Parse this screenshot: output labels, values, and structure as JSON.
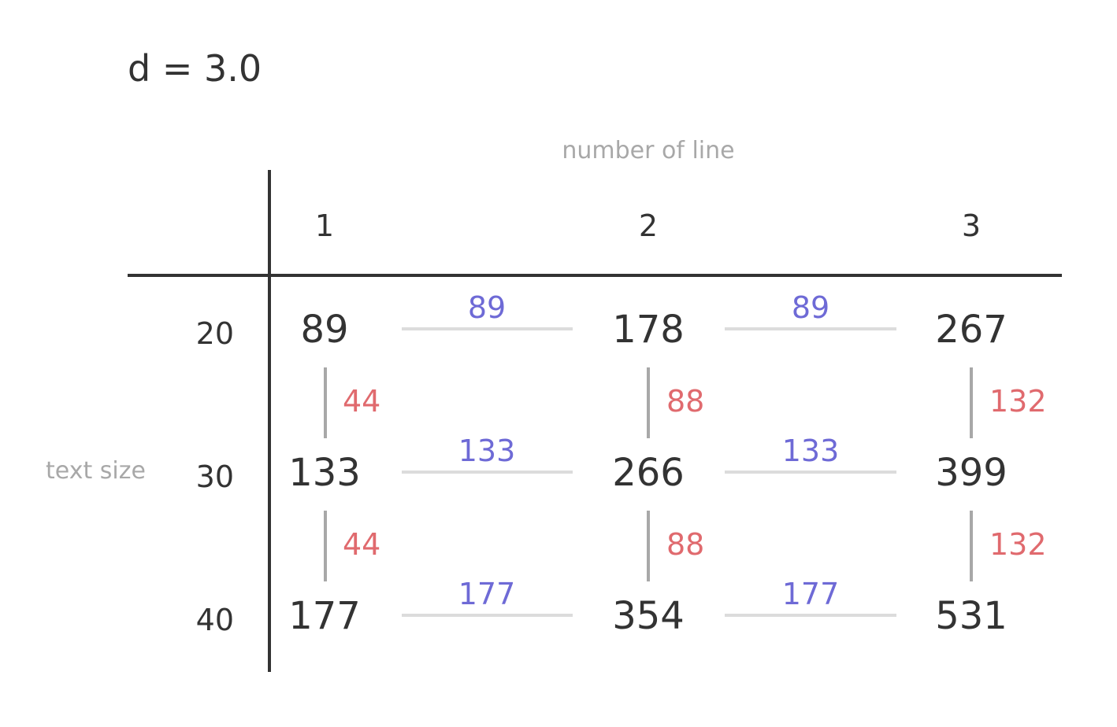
{
  "title": "d = 3.0",
  "axes": {
    "x_label": "number of line",
    "y_label": "text size"
  },
  "columns": [
    "1",
    "2",
    "3"
  ],
  "rows": [
    "20",
    "30",
    "40"
  ],
  "cells": [
    [
      "89",
      "178",
      "267"
    ],
    [
      "133",
      "266",
      "399"
    ],
    [
      "177",
      "354",
      "531"
    ]
  ],
  "horizontal_diffs": [
    [
      "89",
      "89"
    ],
    [
      "133",
      "133"
    ],
    [
      "177",
      "177"
    ]
  ],
  "vertical_diffs": [
    [
      "44",
      "88",
      "132"
    ],
    [
      "44",
      "88",
      "132"
    ]
  ],
  "colors": {
    "text": "#333333",
    "muted": "#a8a8a8",
    "horizontal_diff": "#6e6ad6",
    "vertical_diff": "#e06a6e",
    "connector_horizontal": "#dcdcdc",
    "connector_vertical": "#a8a8a8"
  }
}
